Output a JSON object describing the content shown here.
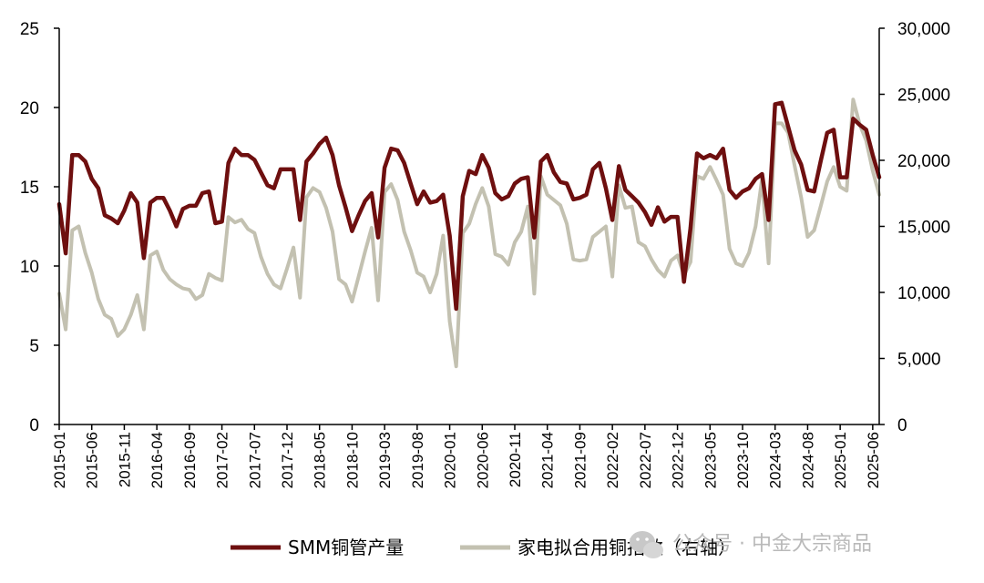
{
  "colors": {
    "smm": "#6e0f0f",
    "appliance": "#c3c1b1",
    "axis": "#000000"
  },
  "watermark": {
    "icon": "wechat-icon",
    "text": "公众号 · 中金大宗商品"
  },
  "chart_data": {
    "type": "line",
    "start_month": "2015-01",
    "x_tick_labels": [
      "2015-01",
      "2015-06",
      "2015-11",
      "2016-04",
      "2016-09",
      "2017-02",
      "2017-07",
      "2017-12",
      "2018-05",
      "2018-10",
      "2019-03",
      "2019-08",
      "2020-01",
      "2020-06",
      "2020-11",
      "2021-04",
      "2021-09",
      "2022-02",
      "2022-07",
      "2022-12",
      "2023-05",
      "2023-10",
      "2024-03",
      "2024-08",
      "2025-01",
      "2025-06"
    ],
    "y_left": {
      "min": 0,
      "max": 25,
      "ticks": [
        "0",
        "5",
        "10",
        "15",
        "20",
        "25"
      ]
    },
    "y_right": {
      "min": 0,
      "max": 30000,
      "ticks": [
        "0",
        "5,000",
        "10,000",
        "15,000",
        "20,000",
        "25,000",
        "30,000"
      ]
    },
    "legend_position": "bottom",
    "grid": false,
    "series": [
      {
        "name": "SMM铜管产量",
        "axis": "left",
        "values": [
          13.9,
          10.8,
          17,
          17,
          16.6,
          15.5,
          14.9,
          13.2,
          13,
          12.7,
          13.5,
          14.6,
          14,
          10.5,
          14,
          14.3,
          14.3,
          13.5,
          12.5,
          13.6,
          13.8,
          13.8,
          14.6,
          14.7,
          12.7,
          12.8,
          16.5,
          17.4,
          17,
          17,
          16.7,
          15.9,
          15.1,
          14.9,
          16.1,
          16.1,
          16.1,
          12.9,
          16.6,
          17.1,
          17.7,
          18.1,
          17,
          15.1,
          13.7,
          12.2,
          13.2,
          14.1,
          14.6,
          11.8,
          16.2,
          17.4,
          17.3,
          16.5,
          15.2,
          13.9,
          14.7,
          14,
          14.1,
          14.5,
          11.9,
          7.3,
          14.4,
          16,
          15.8,
          17,
          16.2,
          14.6,
          14.2,
          14.4,
          15.2,
          15.5,
          15.6,
          11.8,
          16.6,
          17,
          15.9,
          15.3,
          15.2,
          14.2,
          14.3,
          14.5,
          16.1,
          16.5,
          14.9,
          12.9,
          16.3,
          14.8,
          14.4,
          14,
          13.4,
          12.6,
          13.7,
          12.8,
          13.1,
          13.1,
          9,
          12.4,
          17.1,
          16.8,
          17,
          16.8,
          17.4,
          14.8,
          14.3,
          14.7,
          14.9,
          15.5,
          15.8,
          12.9,
          20.2,
          20.3,
          18.8,
          17.3,
          16.4,
          14.8,
          14.7,
          16.6,
          18.4,
          18.6,
          15.6,
          15.6,
          19.3,
          18.9,
          18.6,
          17,
          15.6
        ]
      },
      {
        "name": "家电拟合用铜指数（右轴）",
        "axis": "right",
        "values": [
          9900,
          7200,
          14700,
          15000,
          13000,
          11500,
          9500,
          8300,
          8000,
          6700,
          7200,
          8300,
          9800,
          7200,
          12800,
          13100,
          11700,
          11000,
          10600,
          10300,
          10200,
          9500,
          9800,
          11400,
          11100,
          10900,
          15700,
          15300,
          15500,
          14800,
          14500,
          12700,
          11400,
          10600,
          10300,
          11800,
          13400,
          9600,
          17200,
          17900,
          17600,
          16400,
          14600,
          11000,
          10600,
          9300,
          11200,
          13100,
          14900,
          9400,
          17600,
          18200,
          17000,
          14600,
          13200,
          11500,
          11200,
          10000,
          11400,
          14300,
          7800,
          4400,
          14500,
          15200,
          16700,
          17900,
          16500,
          12900,
          12700,
          12100,
          13800,
          14600,
          16500,
          9900,
          18800,
          17400,
          17000,
          16600,
          15200,
          12500,
          12400,
          12500,
          14200,
          14600,
          15000,
          11200,
          18100,
          16400,
          16500,
          13800,
          13500,
          12500,
          11700,
          11200,
          12400,
          12800,
          11300,
          12300,
          18800,
          18600,
          19500,
          18500,
          17400,
          13300,
          12200,
          12000,
          13000,
          15000,
          18600,
          12200,
          22800,
          22800,
          22100,
          19600,
          17200,
          14200,
          14700,
          16500,
          18400,
          19500,
          18000,
          17700,
          24600,
          22700,
          21500,
          19200,
          17400
        ]
      }
    ]
  }
}
